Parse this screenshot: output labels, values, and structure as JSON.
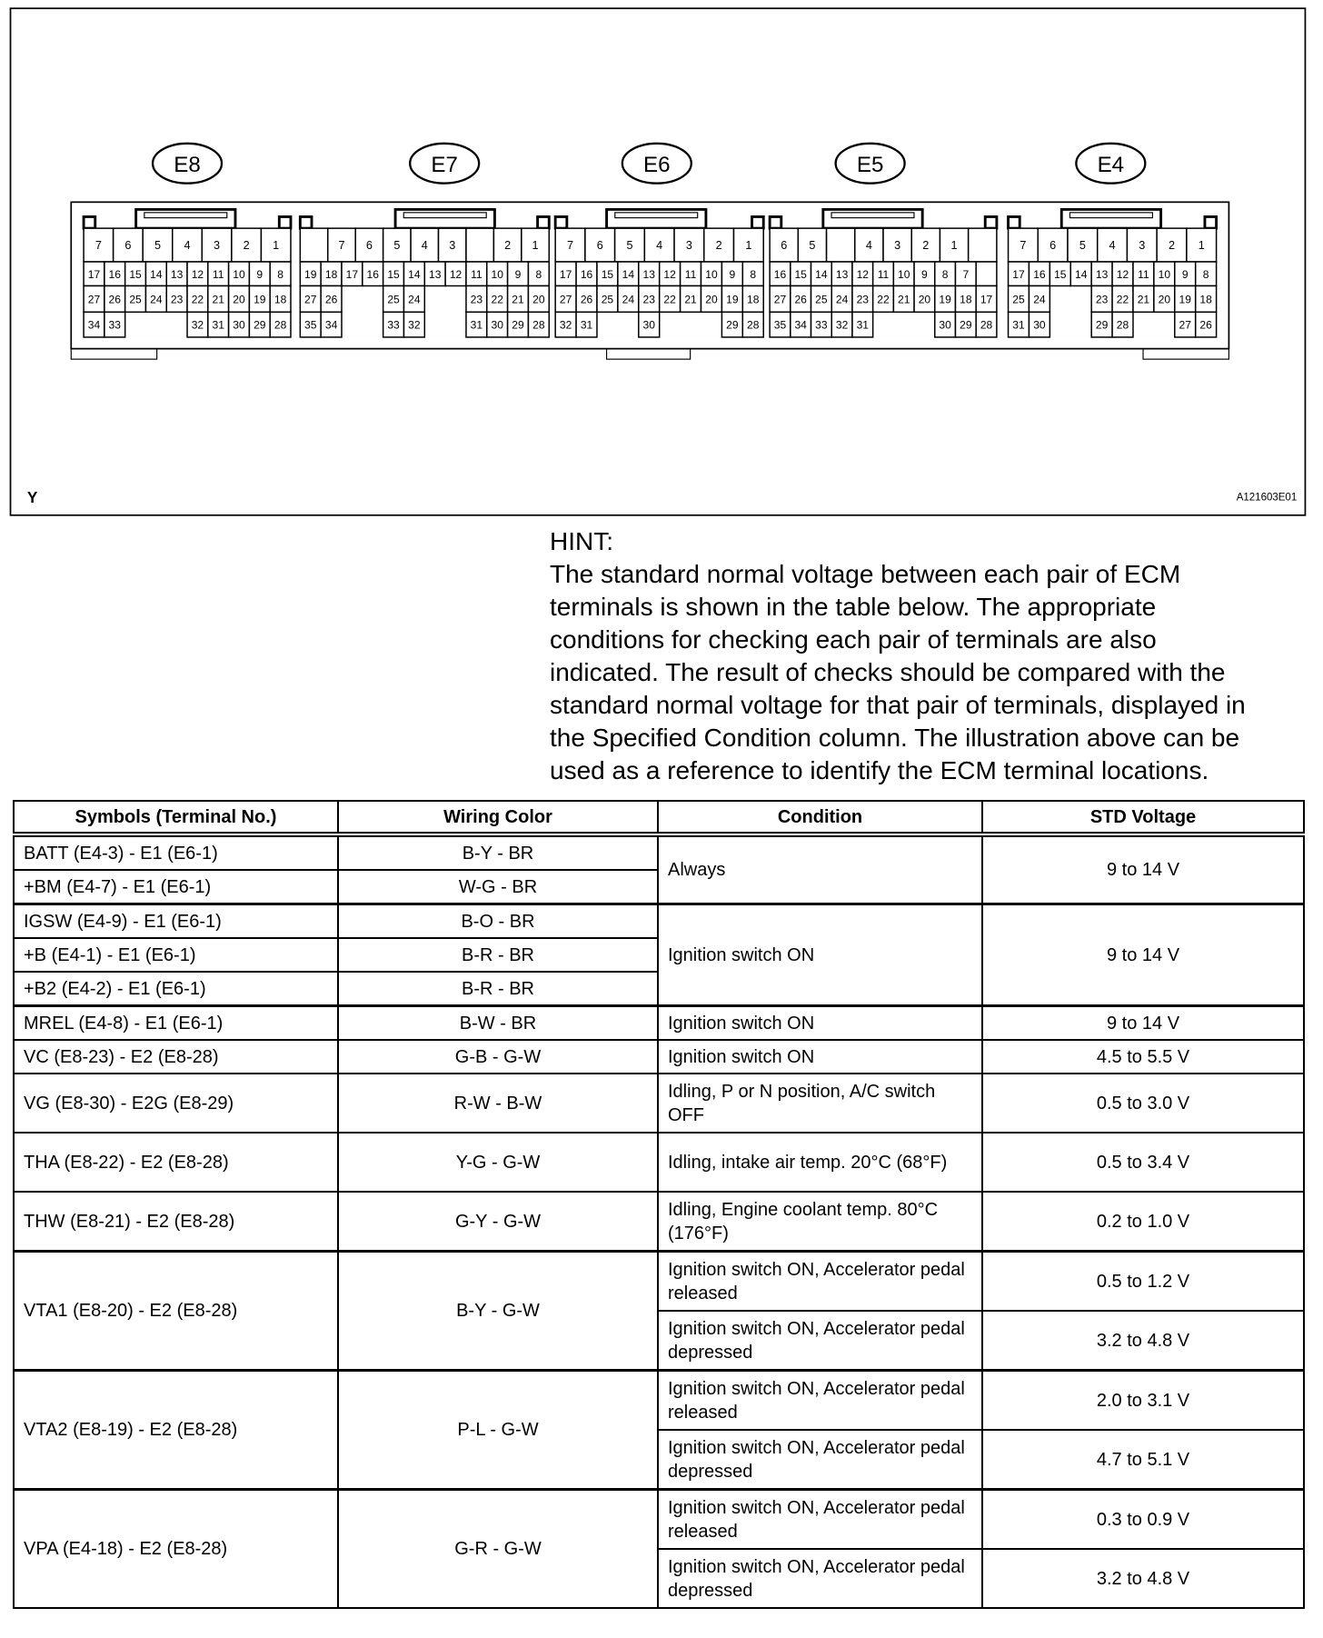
{
  "figure": {
    "corner_label": "Y",
    "figure_id": "A121603E01",
    "connectors": [
      {
        "label": "E8",
        "rows": [
          [
            7,
            6,
            5,
            4,
            3,
            2,
            1
          ],
          [
            17,
            16,
            15,
            14,
            13,
            12,
            11,
            10,
            9,
            8
          ],
          [
            27,
            26,
            25,
            24,
            23,
            22,
            21,
            20,
            19,
            18
          ],
          [
            34,
            33,
            null,
            null,
            null,
            32,
            31,
            30,
            29,
            28
          ]
        ]
      },
      {
        "label": "E7",
        "rows": [
          [
            "",
            7,
            6,
            5,
            4,
            3,
            "",
            2,
            1
          ],
          [
            19,
            18,
            17,
            16,
            15,
            14,
            13,
            12,
            11,
            10,
            9,
            8
          ],
          [
            27,
            26,
            null,
            null,
            25,
            24,
            null,
            null,
            23,
            22,
            21,
            20
          ],
          [
            35,
            34,
            null,
            null,
            33,
            32,
            null,
            null,
            31,
            30,
            29,
            28
          ]
        ]
      },
      {
        "label": "E6",
        "rows": [
          [
            7,
            6,
            5,
            4,
            3,
            2,
            1
          ],
          [
            17,
            16,
            15,
            14,
            13,
            12,
            11,
            10,
            9,
            8
          ],
          [
            27,
            26,
            25,
            24,
            23,
            22,
            21,
            20,
            19,
            18
          ],
          [
            32,
            31,
            null,
            null,
            30,
            null,
            null,
            null,
            29,
            28
          ]
        ]
      },
      {
        "label": "E5",
        "rows": [
          [
            6,
            5,
            "",
            4,
            3,
            2,
            1,
            ""
          ],
          [
            16,
            15,
            14,
            13,
            12,
            11,
            10,
            9,
            8,
            7,
            ""
          ],
          [
            27,
            26,
            25,
            24,
            23,
            22,
            21,
            20,
            19,
            18,
            17
          ],
          [
            35,
            34,
            33,
            32,
            31,
            null,
            null,
            null,
            30,
            29,
            28
          ]
        ]
      },
      {
        "label": "E4",
        "rows": [
          [
            7,
            6,
            5,
            4,
            3,
            2,
            1
          ],
          [
            17,
            16,
            15,
            14,
            13,
            12,
            11,
            10,
            9,
            8
          ],
          [
            25,
            24,
            null,
            null,
            23,
            22,
            21,
            20,
            19,
            18
          ],
          [
            31,
            30,
            null,
            null,
            29,
            28,
            null,
            null,
            27,
            26
          ]
        ]
      }
    ]
  },
  "hint": {
    "title": "HINT:",
    "lines": [
      "The standard normal voltage between each pair of ECM",
      "terminals is shown in the table below. The appropriate",
      "conditions for checking each pair of terminals are also",
      "indicated. The result of checks should be compared with the",
      "standard normal voltage for that pair of terminals, displayed in",
      "the Specified Condition column. The illustration above can be",
      "used as a reference to identify the ECM terminal locations."
    ]
  },
  "table": {
    "headers": [
      "Symbols (Terminal No.)",
      "Wiring Color",
      "Condition",
      "STD Voltage"
    ],
    "rows": [
      {
        "symbol": "BATT (E4-3) - E1 (E6-1)",
        "wire": "B-Y - BR"
      },
      {
        "symbol": "+BM (E4-7) - E1 (E6-1)",
        "wire": "W-G - BR"
      },
      {
        "symbol": "IGSW (E4-9) - E1 (E6-1)",
        "wire": "B-O - BR"
      },
      {
        "symbol": "+B (E4-1) - E1 (E6-1)",
        "wire": "B-R - BR"
      },
      {
        "symbol": "+B2 (E4-2) - E1 (E6-1)",
        "wire": "B-R - BR"
      },
      {
        "symbol": "MREL (E4-8) - E1 (E6-1)",
        "wire": "B-W - BR",
        "condition": "Ignition switch ON",
        "voltage": "9 to 14 V"
      },
      {
        "symbol": "VC (E8-23) - E2 (E8-28)",
        "wire": "G-B - G-W",
        "condition": "Ignition switch ON",
        "voltage": "4.5 to 5.5 V"
      },
      {
        "symbol": "VG (E8-30) - E2G (E8-29)",
        "wire": "R-W - B-W",
        "condition": "Idling, P or N position, A/C switch OFF",
        "voltage": "0.5 to 3.0 V"
      },
      {
        "symbol": "THA (E8-22) - E2 (E8-28)",
        "wire": "Y-G - G-W",
        "condition": "Idling, intake air temp. 20°C (68°F)",
        "voltage": "0.5 to 3.4 V"
      },
      {
        "symbol": "THW (E8-21) - E2 (E8-28)",
        "wire": "G-Y - G-W",
        "condition": "Idling, Engine coolant temp. 80°C (176°F)",
        "voltage": "0.2 to 1.0 V"
      },
      {
        "symbol": "VTA1 (E8-20) - E2 (E8-28)",
        "wire": "B-Y - G-W",
        "sub": [
          {
            "condition": "Ignition switch ON, Accelerator pedal released",
            "voltage": "0.5 to 1.2 V"
          },
          {
            "condition": "Ignition switch ON, Accelerator pedal depressed",
            "voltage": "3.2 to 4.8 V"
          }
        ]
      },
      {
        "symbol": "VTA2 (E8-19) - E2 (E8-28)",
        "wire": "P-L - G-W",
        "sub": [
          {
            "condition": "Ignition switch ON, Accelerator pedal released",
            "voltage": "2.0 to 3.1 V"
          },
          {
            "condition": "Ignition switch ON, Accelerator pedal depressed",
            "voltage": "4.7 to 5.1 V"
          }
        ]
      },
      {
        "symbol": "VPA (E4-18) - E2 (E8-28)",
        "wire": "G-R - G-W",
        "sub": [
          {
            "condition": "Ignition switch ON, Accelerator pedal released",
            "voltage": "0.3 to 0.9 V"
          },
          {
            "condition": "Ignition switch ON, Accelerator pedal depressed",
            "voltage": "3.2 to 4.8 V"
          }
        ]
      }
    ],
    "groups": {
      "always": {
        "condition": "Always",
        "voltage": "9 to 14 V"
      },
      "ign_on": {
        "condition": "Ignition switch ON",
        "voltage": "9 to 14 V"
      }
    }
  }
}
